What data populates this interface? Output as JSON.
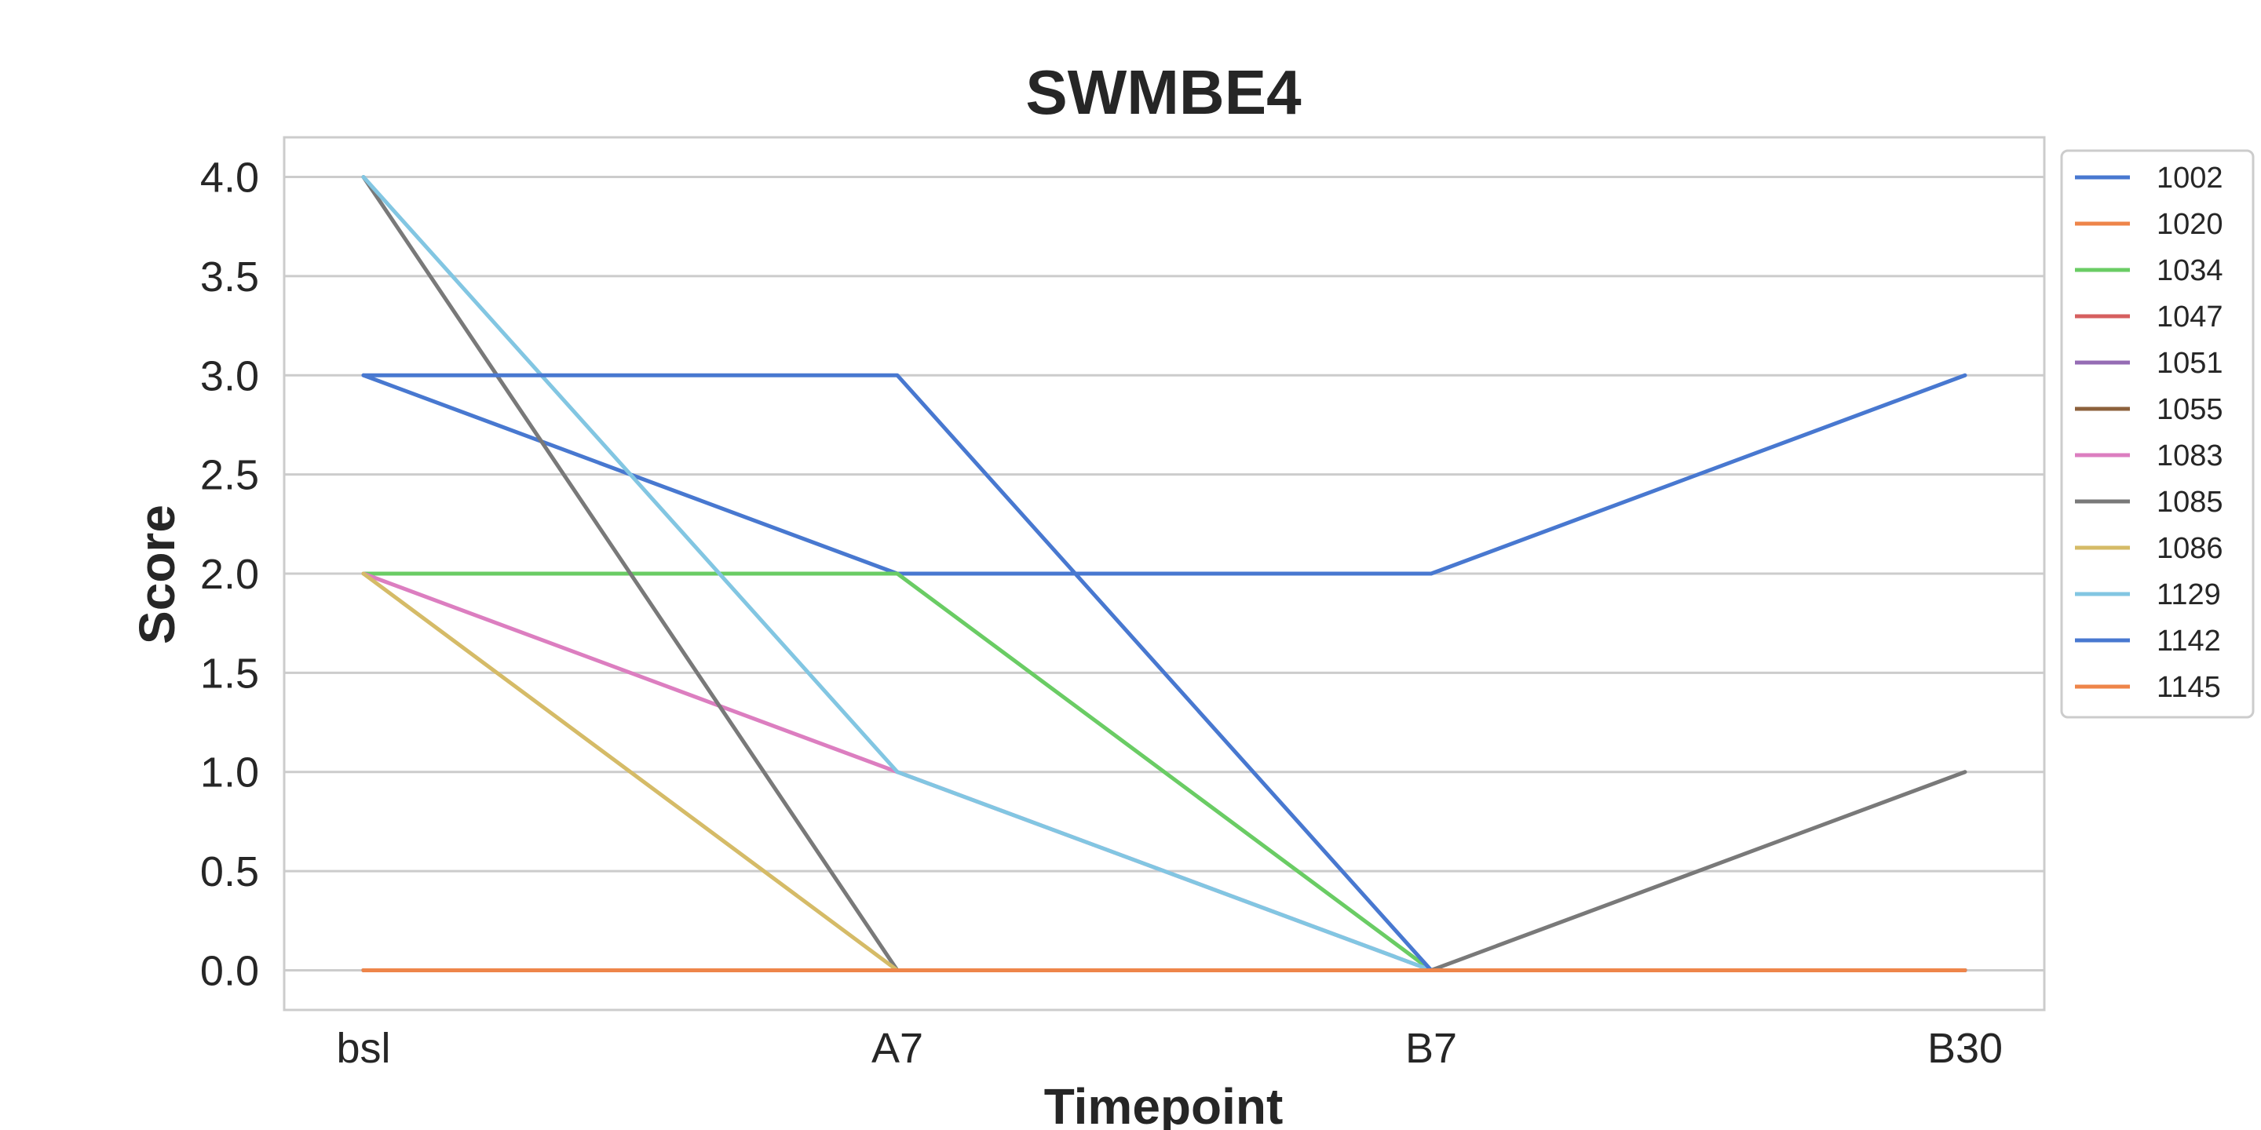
{
  "chart_data": {
    "type": "line",
    "title": "SWMBE4",
    "xlabel": "Timepoint",
    "ylabel": "Score",
    "categories": [
      "bsl",
      "A7",
      "B7",
      "B30"
    ],
    "ylim": [
      -0.2,
      4.2
    ],
    "yticks": [
      0.0,
      0.5,
      1.0,
      1.5,
      2.0,
      2.5,
      3.0,
      3.5,
      4.0
    ],
    "grid": true,
    "legend_position": "outside-right",
    "series": [
      {
        "name": "1002",
        "color": "#4878d0",
        "values": [
          3,
          2,
          2,
          3
        ]
      },
      {
        "name": "1020",
        "color": "#ee854a",
        "values": [
          0,
          0,
          0,
          0
        ]
      },
      {
        "name": "1034",
        "color": "#6acc64",
        "values": [
          2,
          2,
          0,
          0
        ]
      },
      {
        "name": "1047",
        "color": "#d65f5f",
        "values": [
          0,
          0,
          0,
          0
        ]
      },
      {
        "name": "1051",
        "color": "#956cb4",
        "values": [
          0,
          0,
          0,
          0
        ]
      },
      {
        "name": "1055",
        "color": "#8c613c",
        "values": [
          0,
          0,
          0,
          0
        ]
      },
      {
        "name": "1083",
        "color": "#dc7ec0",
        "values": [
          2,
          1,
          0,
          0
        ]
      },
      {
        "name": "1085",
        "color": "#797979",
        "values": [
          4,
          0,
          0,
          1
        ]
      },
      {
        "name": "1086",
        "color": "#d5bb67",
        "values": [
          2,
          0,
          0,
          0
        ]
      },
      {
        "name": "1129",
        "color": "#82c6e2",
        "values": [
          4,
          1,
          0,
          0
        ]
      },
      {
        "name": "1142",
        "color": "#4878d0",
        "values": [
          3,
          3,
          0,
          0
        ]
      },
      {
        "name": "1145",
        "color": "#ee854a",
        "values": [
          0,
          0,
          0,
          0
        ]
      }
    ]
  }
}
